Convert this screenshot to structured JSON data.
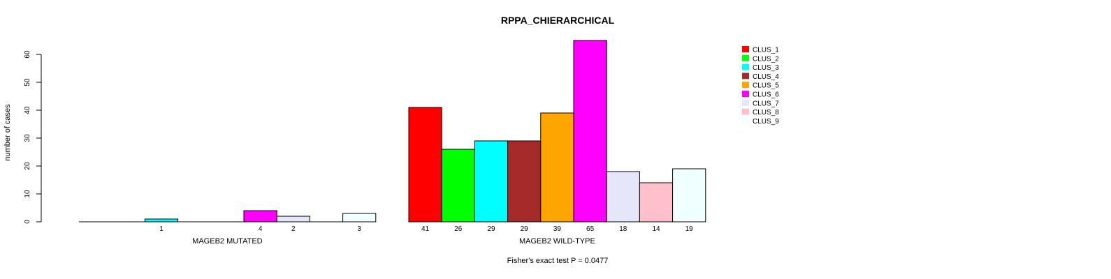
{
  "chart_data": {
    "type": "bar",
    "title": "RPPA_CHIERARCHICAL",
    "ylabel": "number of cases",
    "ylim": [
      0,
      60
    ],
    "yticks": [
      0,
      10,
      20,
      30,
      40,
      50,
      60
    ],
    "footer": "Fisher's exact test P = 0.0477",
    "legend": {
      "position": "top-right",
      "entries": [
        "CLUS_1",
        "CLUS_2",
        "CLUS_3",
        "CLUS_4",
        "CLUS_5",
        "CLUS_6",
        "CLUS_7",
        "CLUS_8",
        "CLUS_9"
      ]
    },
    "colors": [
      "#ff0000",
      "#00ff00",
      "#00ffff",
      "#a52a2a",
      "#ffa500",
      "#ff00ff",
      "#e6e6fa",
      "#ffc0cb",
      "#f0ffff"
    ],
    "groups": [
      {
        "name": "MAGEB2 MUTATED",
        "values": [
          0,
          0,
          1,
          0,
          0,
          4,
          2,
          0,
          3
        ],
        "labels": [
          "",
          "",
          "1",
          "",
          "",
          "4",
          "2",
          "",
          "3"
        ]
      },
      {
        "name": "MAGEB2 WILD-TYPE",
        "values": [
          41,
          26,
          29,
          29,
          39,
          65,
          18,
          14,
          19
        ],
        "labels": [
          "41",
          "26",
          "29",
          "29",
          "39",
          "65",
          "18",
          "14",
          "19"
        ]
      }
    ]
  }
}
